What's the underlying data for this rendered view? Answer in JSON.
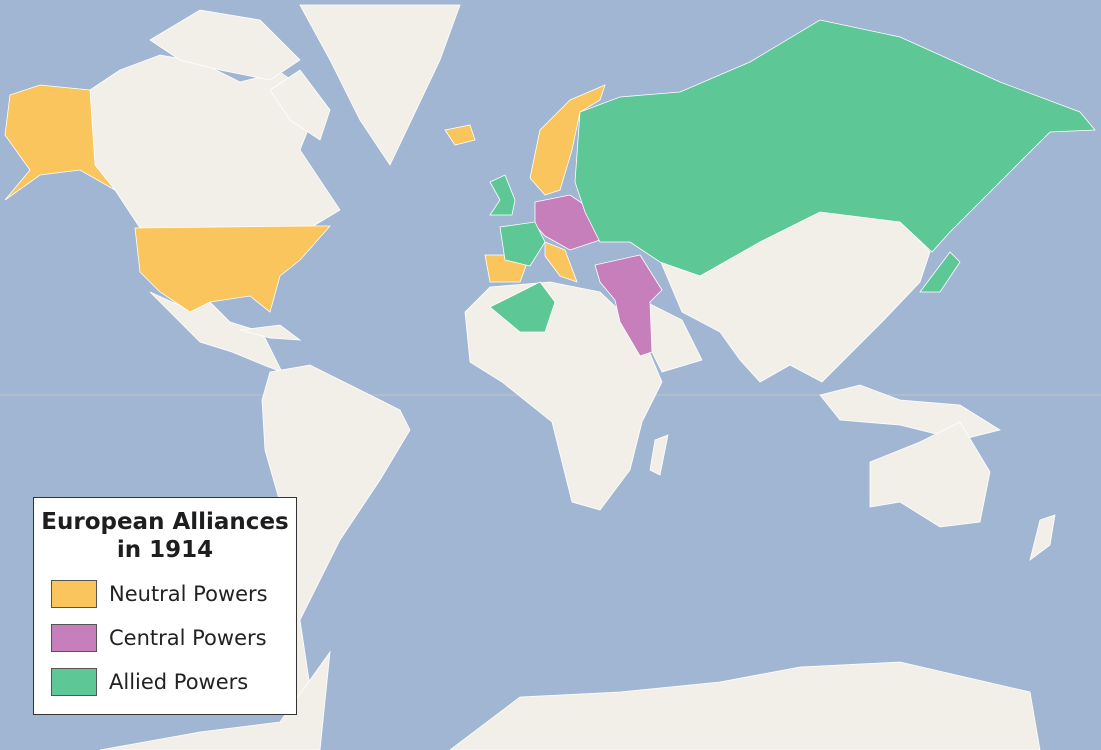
{
  "legend": {
    "title_line1": "European Alliances",
    "title_line2": "in 1914",
    "items": [
      {
        "label": "Neutral Powers",
        "color": "#f9c55c"
      },
      {
        "label": "Central Powers",
        "color": "#c77fbb"
      },
      {
        "label": "Allied Powers",
        "color": "#5dc795"
      }
    ]
  },
  "colors": {
    "ocean": "#a0b6d2",
    "land": "#f2efe9"
  }
}
